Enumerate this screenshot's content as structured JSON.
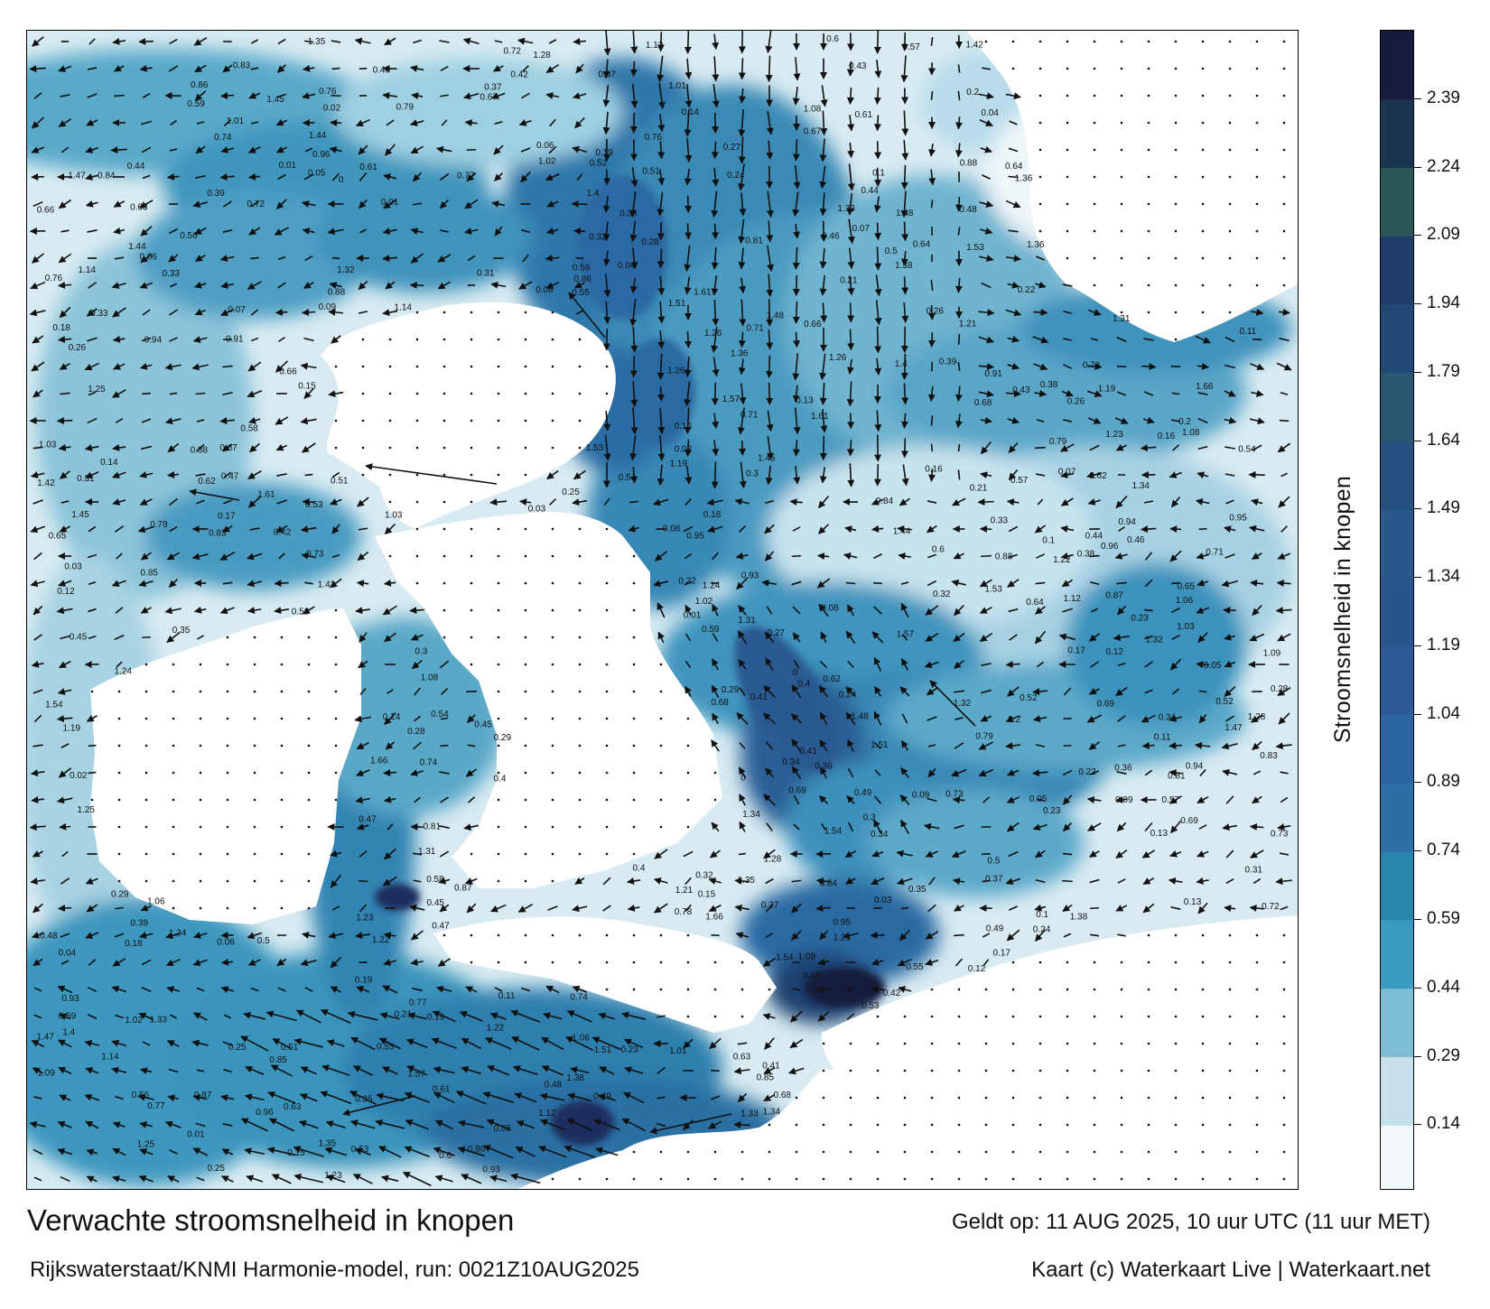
{
  "map": {
    "title": "Verwachte stroomsnelheid in knopen",
    "subtitle": "Rijkswaterstaat/KNMI Harmonie-model, run: 0021Z10AUG2025",
    "valid_time": "Geldt op: 11 AUG 2025, 10 uur UTC (11 uur MET)",
    "credit": "Kaart (c) Waterkaart Live | Waterkaart.net",
    "land_color": "#ffffff",
    "arrow_color": "#111111"
  },
  "colorbar": {
    "label": "Stroomsnelheid in knopen",
    "min": 0,
    "max": 2.54,
    "ticks": [
      "0.14",
      "0.29",
      "0.44",
      "0.59",
      "0.74",
      "0.89",
      "1.04",
      "1.19",
      "1.34",
      "1.49",
      "1.64",
      "1.79",
      "1.94",
      "2.09",
      "2.24",
      "2.39"
    ],
    "bands": [
      {
        "from": 0.0,
        "to": 0.14,
        "color": "#f3f8fb"
      },
      {
        "from": 0.14,
        "to": 0.29,
        "color": "#c7e1ea"
      },
      {
        "from": 0.29,
        "to": 0.44,
        "color": "#7fbdd4"
      },
      {
        "from": 0.44,
        "to": 0.59,
        "color": "#3a9cc0"
      },
      {
        "from": 0.59,
        "to": 0.74,
        "color": "#2a86ae"
      },
      {
        "from": 0.74,
        "to": 0.89,
        "color": "#2c6fa7"
      },
      {
        "from": 0.89,
        "to": 1.04,
        "color": "#2b63a3"
      },
      {
        "from": 1.04,
        "to": 1.19,
        "color": "#2d5b98"
      },
      {
        "from": 1.19,
        "to": 1.34,
        "color": "#2a548e"
      },
      {
        "from": 1.34,
        "to": 1.49,
        "color": "#29588c"
      },
      {
        "from": 1.49,
        "to": 1.64,
        "color": "#26507f"
      },
      {
        "from": 1.64,
        "to": 1.79,
        "color": "#2a5870"
      },
      {
        "from": 1.79,
        "to": 1.94,
        "color": "#224975"
      },
      {
        "from": 1.94,
        "to": 2.09,
        "color": "#1f3d6b"
      },
      {
        "from": 2.09,
        "to": 2.24,
        "color": "#2b5656"
      },
      {
        "from": 2.24,
        "to": 2.39,
        "color": "#1a3552"
      },
      {
        "from": 2.39,
        "to": 2.54,
        "color": "#171c3f"
      }
    ]
  },
  "speed_labels": [
    {
      "text": "0.21"
    },
    {
      "text": "0.24"
    },
    {
      "text": "0.22"
    },
    {
      "text": "0.26"
    },
    {
      "text": "0.13"
    },
    {
      "text": "0.12"
    },
    {
      "text": "0.09"
    },
    {
      "text": "0.11"
    },
    {
      "text": "0.16"
    },
    {
      "text": "0.23"
    },
    {
      "text": "0.19"
    },
    {
      "text": "0.17"
    },
    {
      "text": "0.32"
    },
    {
      "text": "0.25"
    },
    {
      "text": "0.18"
    },
    {
      "text": "0.28"
    },
    {
      "text": "0.46"
    },
    {
      "text": "0.45"
    },
    {
      "text": "0.58"
    },
    {
      "text": "0.73"
    },
    {
      "text": "0.85"
    },
    {
      "text": "0.79"
    },
    {
      "text": "0.87"
    },
    {
      "text": "0.56"
    },
    {
      "text": "0.54"
    },
    {
      "text": "0.53"
    },
    {
      "text": "0.52"
    },
    {
      "text": "0.48"
    },
    {
      "text": "0.44"
    },
    {
      "text": "0.43"
    },
    {
      "text": "0.37"
    },
    {
      "text": "0.36"
    },
    {
      "text": "0.41"
    },
    {
      "text": "0.39"
    },
    {
      "text": "0.35"
    },
    {
      "text": "0.31"
    },
    {
      "text": "0.27"
    },
    {
      "text": "0.15"
    },
    {
      "text": "0.14"
    },
    {
      "text": "0.08"
    },
    {
      "text": "0.06"
    },
    {
      "text": "0.05"
    },
    {
      "text": "0.03"
    },
    {
      "text": "1.02"
    },
    {
      "text": "1.01"
    },
    {
      "text": "0.95"
    },
    {
      "text": "0.94"
    },
    {
      "text": "0.93"
    },
    {
      "text": "0.64"
    },
    {
      "text": "0.59"
    },
    {
      "text": "0.57"
    },
    {
      "text": "0.49"
    },
    {
      "text": "0.42"
    },
    {
      "text": "0.34"
    },
    {
      "text": "0.33"
    },
    {
      "text": "1.35"
    },
    {
      "text": "1.23"
    },
    {
      "text": "1.31"
    },
    {
      "text": "1.38"
    },
    {
      "text": "1.54"
    },
    {
      "text": "1.26"
    },
    {
      "text": "1.34"
    },
    {
      "text": "1.25"
    },
    {
      "text": "0.96"
    },
    {
      "text": "0.83"
    },
    {
      "text": "0.81"
    },
    {
      "text": "0.78"
    },
    {
      "text": "0.76"
    },
    {
      "text": "0.72"
    },
    {
      "text": "0.71"
    },
    {
      "text": "0.63"
    },
    {
      "text": "0.62"
    },
    {
      "text": "0.61"
    },
    {
      "text": "0.65"
    },
    {
      "text": "0.66"
    },
    {
      "text": "1.32"
    },
    {
      "text": "1.06"
    },
    {
      "text": "1.09"
    },
    {
      "text": "1.22"
    },
    {
      "text": "1.28"
    },
    {
      "text": "1.14"
    },
    {
      "text": "1.12"
    },
    {
      "text": "1.21"
    },
    {
      "text": "1.36"
    },
    {
      "text": "0.91"
    },
    {
      "text": "1.03"
    },
    {
      "text": "1.33"
    },
    {
      "text": "1.47"
    },
    {
      "text": "1.51"
    },
    {
      "text": "1.42"
    },
    {
      "text": "1.48"
    },
    {
      "text": "1.53"
    },
    {
      "text": "1.44"
    },
    {
      "text": "1.45"
    },
    {
      "text": "1.66"
    },
    {
      "text": "1.61"
    },
    {
      "text": "1.57"
    },
    {
      "text": "1.19"
    },
    {
      "text": "1.08"
    },
    {
      "text": "0.77"
    },
    {
      "text": "0.69"
    },
    {
      "text": "0.51"
    },
    {
      "text": "0.47"
    },
    {
      "text": "0.4"
    },
    {
      "text": "0.38"
    },
    {
      "text": "0.3"
    },
    {
      "text": "0.2"
    },
    {
      "text": "0.1"
    },
    {
      "text": "0.07"
    },
    {
      "text": "0.04"
    },
    {
      "text": "0.02"
    },
    {
      "text": "0.01"
    },
    {
      "text": "0"
    },
    {
      "text": "1.4"
    },
    {
      "text": "1.24"
    },
    {
      "text": "0.88"
    },
    {
      "text": "0.86"
    },
    {
      "text": "0.84"
    },
    {
      "text": "0.74"
    },
    {
      "text": "0.68"
    },
    {
      "text": "0.67"
    },
    {
      "text": "0.55"
    },
    {
      "text": "0.5"
    },
    {
      "text": "0.29"
    },
    {
      "text": "0.6"
    }
  ]
}
